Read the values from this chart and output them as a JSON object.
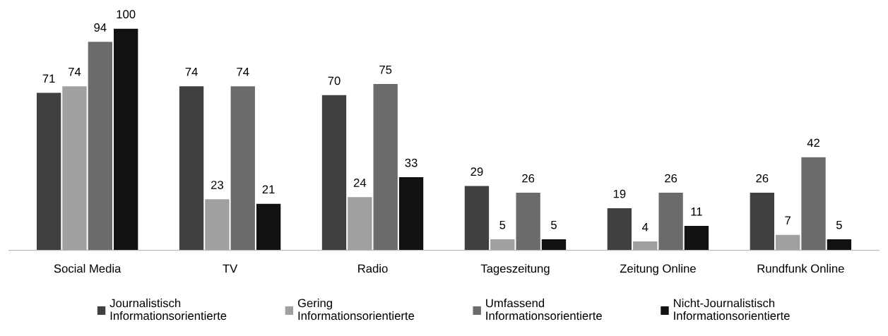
{
  "chart_data": {
    "type": "bar",
    "categories": [
      "Social Media",
      "TV",
      "Radio",
      "Tageszeitung",
      "Zeitung Online",
      "Rundfunk Online"
    ],
    "series": [
      {
        "name": "Journalistisch\nInformationsorientierte",
        "color": "#404040",
        "values": [
          71,
          74,
          70,
          29,
          19,
          26
        ]
      },
      {
        "name": "Gering\nInformationsorientierte",
        "color": "#a0a0a0",
        "values": [
          74,
          23,
          24,
          5,
          4,
          7
        ]
      },
      {
        "name": "Umfassend\nInformationsorientierte",
        "color": "#6b6b6b",
        "values": [
          94,
          74,
          75,
          26,
          26,
          42
        ]
      },
      {
        "name": "Nicht-Journalistisch\nInformationsorientierte",
        "color": "#111111",
        "values": [
          100,
          21,
          33,
          5,
          11,
          5
        ]
      }
    ],
    "data_labels": true,
    "grid": false,
    "legend": "bottom",
    "tick_labels": "x"
  }
}
